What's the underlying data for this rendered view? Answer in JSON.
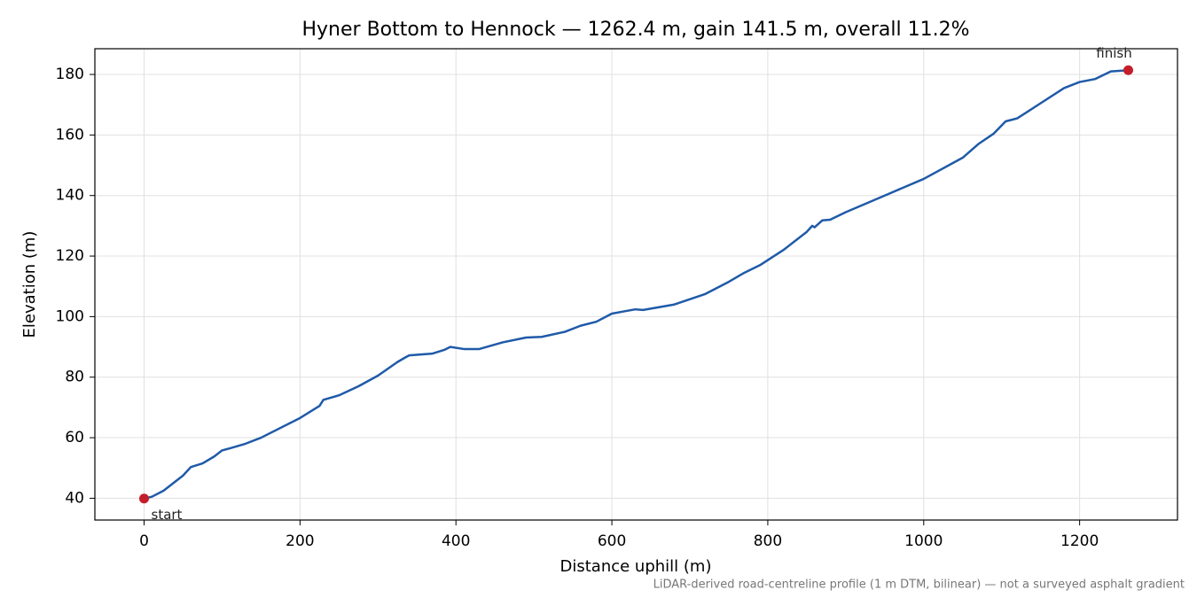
{
  "chart_data": {
    "type": "line",
    "title": "Hyner Bottom to Hennock — 1262.4 m, gain 141.5 m, overall 11.2%",
    "x_label": "Distance uphill (m)",
    "y_label": "Elevation (m)",
    "note": "LiDAR-derived road-centreline profile (1 m DTM, bilinear) — not a surveyed asphalt gradient",
    "xlim": [
      -63.12,
      1325.52
    ],
    "ylim": [
      32.8,
      188.5
    ],
    "xticks": [
      0,
      200,
      400,
      600,
      800,
      1000,
      1200
    ],
    "yticks": [
      40,
      60,
      80,
      100,
      120,
      140,
      160,
      180
    ],
    "grid": true,
    "series": [
      {
        "name": "profile",
        "color": "#1f5aa8",
        "x": [
          0,
          10,
          25,
          50,
          60,
          75,
          90,
          100,
          110,
          130,
          150,
          200,
          225,
          230,
          250,
          275,
          300,
          325,
          335,
          340,
          370,
          385,
          393,
          410,
          430,
          460,
          490,
          510,
          540,
          560,
          580,
          600,
          615,
          630,
          640,
          680,
          720,
          750,
          770,
          790,
          820,
          850,
          857,
          860,
          870,
          880,
          900,
          950,
          1000,
          1050,
          1070,
          1090,
          1105,
          1120,
          1150,
          1180,
          1200,
          1220,
          1240,
          1262.4
        ],
        "values": [
          39.9,
          40.5,
          42.5,
          47.5,
          50.3,
          51.5,
          53.8,
          55.8,
          56.5,
          58,
          60,
          66.5,
          70.5,
          72.5,
          74,
          77,
          80.5,
          85,
          86.5,
          87.2,
          87.8,
          89,
          90,
          89.3,
          89.3,
          91.5,
          93.1,
          93.3,
          95,
          97,
          98.3,
          101,
          101.7,
          102.4,
          102.2,
          104,
          107.5,
          111.5,
          114.5,
          117,
          122,
          128,
          130,
          129.5,
          131.8,
          132,
          134.5,
          140,
          145.5,
          152.5,
          157,
          160.5,
          164.5,
          165.5,
          170.5,
          175.5,
          177.5,
          178.5,
          181,
          181.4
        ]
      },
      {
        "name": "endpoints",
        "color": "#c41e2a",
        "x": [
          0,
          1262.4
        ],
        "values": [
          39.9,
          181.4
        ],
        "labels": [
          "start",
          "finish"
        ]
      }
    ]
  }
}
